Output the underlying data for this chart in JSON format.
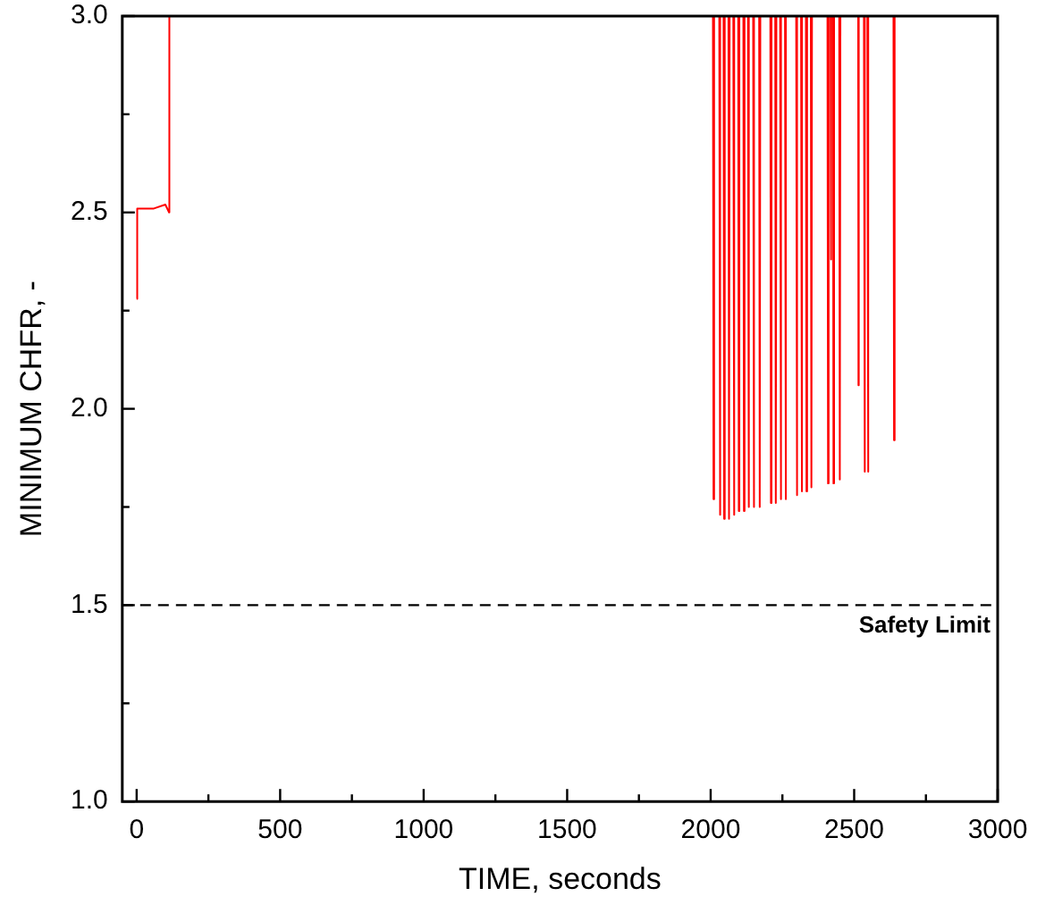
{
  "chart_data": {
    "type": "line",
    "xlabel": "TIME, seconds",
    "ylabel": "MINIMUM CHFR, -",
    "series": [
      {
        "color": "#ff0000",
        "x": [
          0,
          2,
          60,
          100,
          113,
          114,
          2008,
          2010,
          2012,
          2030,
          2032,
          2034,
          2045,
          2047,
          2049,
          2062,
          2064,
          2066,
          2079,
          2081,
          2083,
          2096,
          2098,
          2100,
          2114,
          2116,
          2118,
          2130,
          2132,
          2134,
          2148,
          2150,
          2152,
          2169,
          2171,
          2173,
          2208,
          2210,
          2212,
          2225,
          2227,
          2229,
          2242,
          2244,
          2246,
          2259,
          2261,
          2263,
          2298,
          2300,
          2302,
          2315,
          2317,
          2319,
          2332,
          2334,
          2336,
          2349,
          2351,
          2353,
          2407,
          2409,
          2411,
          2418,
          2419,
          2420,
          2426,
          2428,
          2430,
          2448,
          2450,
          2452,
          2514,
          2515,
          2516,
          2534,
          2536,
          2538,
          2546,
          2548,
          2550,
          2637,
          2639,
          2641
        ],
        "values": [
          2.28,
          2.51,
          2.51,
          2.52,
          2.5,
          3.0,
          3.0,
          1.77,
          3.0,
          3.0,
          1.73,
          3.0,
          3.0,
          1.72,
          3.0,
          3.0,
          1.72,
          3.0,
          3.0,
          1.73,
          3.0,
          3.0,
          1.74,
          3.0,
          3.0,
          1.74,
          3.0,
          3.0,
          1.75,
          3.0,
          3.0,
          1.75,
          3.0,
          3.0,
          1.75,
          3.0,
          3.0,
          1.76,
          3.0,
          3.0,
          1.76,
          3.0,
          3.0,
          1.77,
          3.0,
          3.0,
          1.77,
          3.0,
          3.0,
          1.78,
          3.0,
          3.0,
          1.79,
          3.0,
          3.0,
          1.79,
          3.0,
          3.0,
          1.8,
          3.0,
          3.0,
          1.81,
          3.0,
          3.0,
          2.38,
          3.0,
          3.0,
          1.81,
          3.0,
          3.0,
          1.82,
          3.0,
          3.0,
          2.06,
          3.0,
          3.0,
          1.84,
          3.0,
          3.0,
          1.84,
          3.0,
          3.0,
          1.92,
          3.0
        ]
      }
    ],
    "xlim": [
      -50,
      3000
    ],
    "xticks": [
      0,
      {
        "value": 250,
        "label": null
      },
      500,
      {
        "value": 750,
        "label": null
      },
      1000,
      {
        "value": 1250,
        "label": null
      },
      1500,
      {
        "value": 1750,
        "label": null
      },
      2000,
      {
        "value": 2250,
        "label": null
      },
      2500,
      {
        "value": 2750,
        "label": null
      },
      3000
    ],
    "ylim": [
      1,
      3
    ],
    "yticks": [
      {
        "value": 1,
        "label": "1.0"
      },
      {
        "value": 1.25,
        "label": null
      },
      {
        "value": 1.5,
        "label": "1.5"
      },
      {
        "value": 1.75,
        "label": null
      },
      {
        "value": 2,
        "label": "2.0"
      },
      {
        "value": 2.25,
        "label": null
      },
      {
        "value": 2.5,
        "label": "2.5"
      },
      {
        "value": 2.75,
        "label": null
      },
      {
        "value": 3,
        "label": "3.0"
      }
    ],
    "ref_lines": [
      {
        "axis": "y",
        "value": 1.5,
        "label": "Safety Limit",
        "color": "#000000",
        "line_style": "dashed"
      }
    ],
    "grid": false,
    "legend": false,
    "marker": "none",
    "line_style": "solid"
  }
}
